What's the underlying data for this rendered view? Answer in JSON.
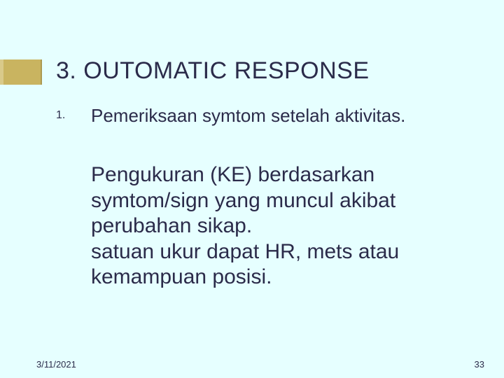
{
  "colors": {
    "background": "#e6ffff",
    "text": "#2b2b4a",
    "accent_fill": "#c9b460",
    "accent_edge": "#d9ca8a"
  },
  "title": "3. OUTOMATIC RESPONSE",
  "list": {
    "number": "1.",
    "item": "Pemeriksaan symtom setelah aktivitas."
  },
  "body": {
    "p1": "Pengukuran (KE) berdasarkan symtom/sign yang muncul akibat perubahan sikap.",
    "p2": "satuan ukur dapat HR, mets atau kemampuan posisi."
  },
  "footer": {
    "date": "3/11/2021",
    "page": "33"
  },
  "typography": {
    "title_fontsize": 34,
    "list_number_fontsize": 16,
    "list_item_fontsize": 26,
    "body_fontsize": 30,
    "footer_fontsize": 13,
    "font_family": "Verdana"
  }
}
